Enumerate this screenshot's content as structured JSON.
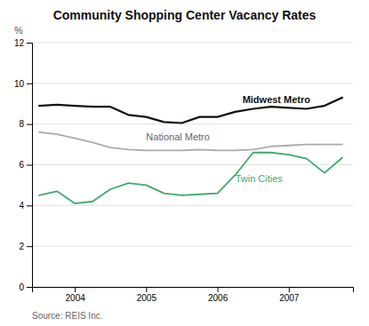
{
  "chart_data": {
    "type": "line",
    "title": "Community Shopping Center Vacancy Rates",
    "ylabel": "%",
    "source": "Source: REIS Inc.",
    "x": [
      2003.5,
      2003.75,
      2004.0,
      2004.25,
      2004.5,
      2004.75,
      2005.0,
      2005.25,
      2005.5,
      2005.75,
      2006.0,
      2006.25,
      2006.5,
      2006.75,
      2007.0,
      2007.25,
      2007.5,
      2007.75
    ],
    "series": [
      {
        "name": "Midwest Metro",
        "color": "#111111",
        "values": [
          8.9,
          8.95,
          8.9,
          8.85,
          8.85,
          8.45,
          8.35,
          8.1,
          8.05,
          8.35,
          8.35,
          8.6,
          8.75,
          8.85,
          8.8,
          8.75,
          8.9,
          9.3
        ]
      },
      {
        "name": "National Metro",
        "color": "#aaaaaa",
        "values": [
          7.6,
          7.5,
          7.3,
          7.1,
          6.85,
          6.75,
          6.7,
          6.7,
          6.7,
          6.75,
          6.7,
          6.7,
          6.75,
          6.9,
          6.95,
          7.0,
          7.0,
          7.0
        ]
      },
      {
        "name": "Twin Cities",
        "color": "#3daa6a",
        "values": [
          4.5,
          4.7,
          4.1,
          4.2,
          4.8,
          5.1,
          5.0,
          4.6,
          4.5,
          4.55,
          4.6,
          5.5,
          6.6,
          6.6,
          6.5,
          6.3,
          5.6,
          6.35
        ]
      }
    ],
    "annotations": [
      {
        "text": "Midwest Metro",
        "x": 2006.35,
        "y": 8.95
      },
      {
        "text": "National Metro",
        "x": 2005.0,
        "y": 7.1
      },
      {
        "text": "Twin Cities",
        "x": 2006.25,
        "y": 5.05
      }
    ],
    "xlim": [
      2003.4,
      2007.9
    ],
    "xticks": [
      2004,
      2005,
      2006,
      2007
    ],
    "ylim": [
      0,
      12
    ],
    "yticks": [
      0,
      2,
      4,
      6,
      8,
      10,
      12
    ],
    "grid": true
  }
}
